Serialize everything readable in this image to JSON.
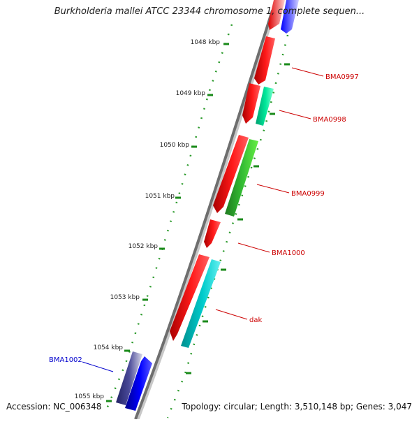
{
  "title": "Burkholderia mallei ATCC 23344 chromosome 1, complete sequen...",
  "accession": "Accession: NC_006348",
  "summary": "Topology: circular; Length: 3,510,148 bp; Genes: 3,047",
  "ticks": [
    "1048 kbp",
    "1049 kbp",
    "1050 kbp",
    "1051 kbp",
    "1052 kbp",
    "1053 kbp",
    "1054 kbp",
    "1055 kbp"
  ],
  "colors": {
    "plus_strand_gene": "#ff0000",
    "minus_strand_gene": "#0000ff",
    "teal_gene": "#00c8c8",
    "green_gene": "#33cc33",
    "aqua_gene": "#00e89a",
    "dark_gene": "#3d3d8a",
    "backbone": "#7a7a7a",
    "tick": "#1a8a1a",
    "label_red": "#cc0000",
    "label_blue": "#0000cc"
  },
  "gene_labels": [
    {
      "text": "BMA0997",
      "color": "red"
    },
    {
      "text": "BMA0998",
      "color": "red"
    },
    {
      "text": "BMA0999",
      "color": "red"
    },
    {
      "text": "BMA1000",
      "color": "red"
    },
    {
      "text": "dak",
      "color": "red"
    },
    {
      "text": "BMA1002",
      "color": "blue"
    }
  ]
}
